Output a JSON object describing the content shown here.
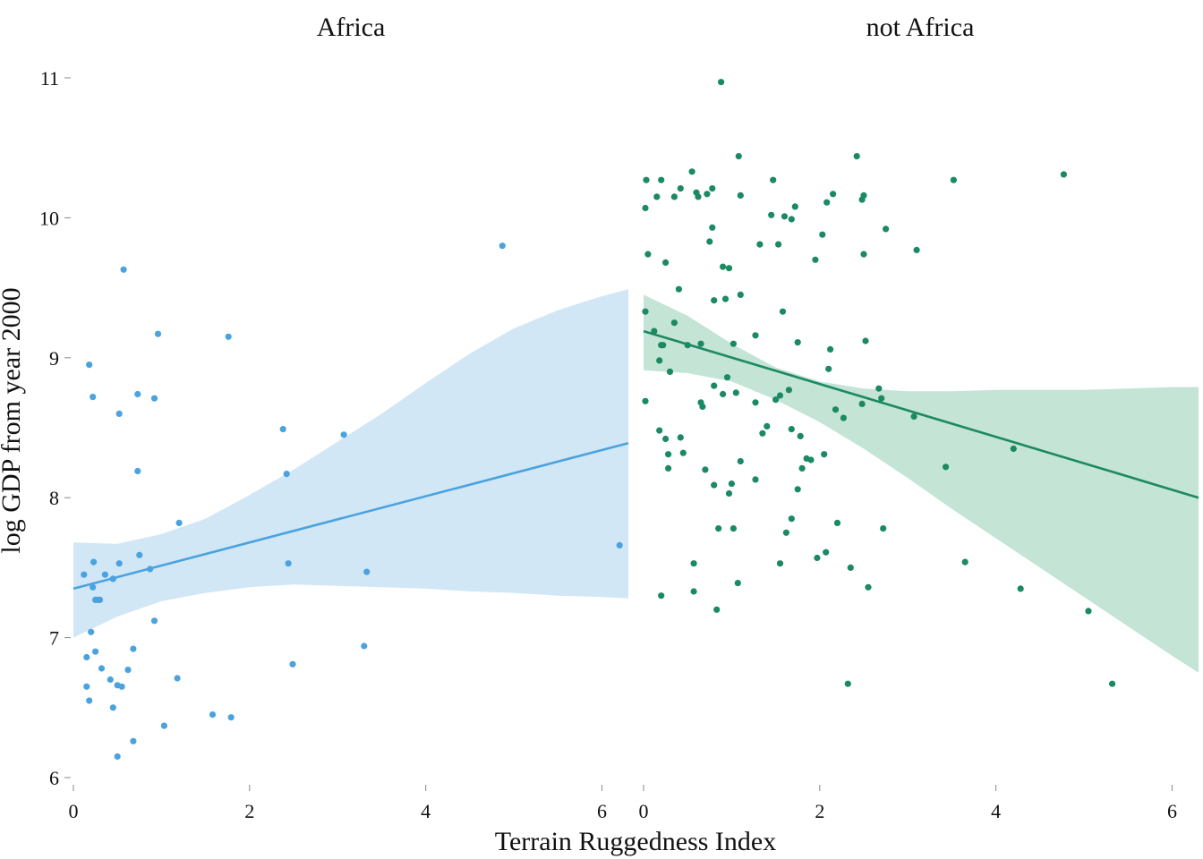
{
  "chart_data": {
    "type": "scatter",
    "xlabel": "Terrain Ruggedness Index",
    "ylabel": "log GDP from year 2000",
    "ylim": [
      6,
      11
    ],
    "y_ticks": [
      6,
      7,
      8,
      9,
      10,
      11
    ],
    "grid": false,
    "legend": "none",
    "panels": [
      {
        "title": "Africa",
        "color": "#4aa3df",
        "band_color": "#d2e7f6",
        "xlim": [
          0,
          6.3
        ],
        "x_ticks": [
          0,
          2,
          4,
          6
        ],
        "points": [
          [
            0.12,
            7.45
          ],
          [
            0.15,
            6.86
          ],
          [
            0.15,
            6.65
          ],
          [
            0.18,
            8.95
          ],
          [
            0.18,
            6.55
          ],
          [
            0.2,
            7.04
          ],
          [
            0.22,
            8.72
          ],
          [
            0.22,
            7.36
          ],
          [
            0.23,
            7.54
          ],
          [
            0.25,
            7.27
          ],
          [
            0.25,
            6.9
          ],
          [
            0.28,
            7.27
          ],
          [
            0.3,
            7.27
          ],
          [
            0.32,
            6.78
          ],
          [
            0.36,
            7.45
          ],
          [
            0.42,
            6.7
          ],
          [
            0.45,
            7.42
          ],
          [
            0.45,
            6.5
          ],
          [
            0.5,
            6.66
          ],
          [
            0.5,
            6.15
          ],
          [
            0.52,
            8.6
          ],
          [
            0.52,
            7.53
          ],
          [
            0.55,
            6.65
          ],
          [
            0.57,
            9.63
          ],
          [
            0.62,
            6.77
          ],
          [
            0.68,
            6.92
          ],
          [
            0.68,
            6.26
          ],
          [
            0.73,
            8.74
          ],
          [
            0.73,
            8.19
          ],
          [
            0.75,
            7.59
          ],
          [
            0.87,
            7.49
          ],
          [
            0.92,
            8.71
          ],
          [
            0.92,
            7.12
          ],
          [
            0.96,
            9.17
          ],
          [
            1.03,
            6.37
          ],
          [
            1.18,
            6.71
          ],
          [
            1.2,
            7.82
          ],
          [
            1.58,
            6.45
          ],
          [
            1.76,
            9.15
          ],
          [
            1.79,
            6.43
          ],
          [
            2.38,
            8.49
          ],
          [
            2.42,
            8.17
          ],
          [
            2.44,
            7.53
          ],
          [
            2.49,
            6.81
          ],
          [
            3.07,
            8.45
          ],
          [
            3.3,
            6.94
          ],
          [
            3.33,
            7.47
          ],
          [
            4.87,
            9.8
          ],
          [
            6.2,
            7.66
          ]
        ],
        "trend": {
          "x": [
            0,
            6.3
          ],
          "y": [
            7.35,
            8.39
          ]
        },
        "band": {
          "x": [
            0,
            0.5,
            1,
            1.5,
            2,
            2.5,
            3,
            3.5,
            4,
            4.5,
            5,
            5.5,
            6,
            6.3
          ],
          "lower": [
            7.0,
            7.15,
            7.26,
            7.32,
            7.36,
            7.38,
            7.37,
            7.36,
            7.35,
            7.33,
            7.32,
            7.3,
            7.29,
            7.28
          ],
          "upper": [
            7.68,
            7.67,
            7.74,
            7.85,
            8.02,
            8.2,
            8.4,
            8.6,
            8.82,
            9.03,
            9.21,
            9.34,
            9.44,
            9.49
          ]
        }
      },
      {
        "title": "not Africa",
        "color": "#1b8a62",
        "band_color": "#c4e4d6",
        "xlim": [
          0,
          6.3
        ],
        "x_ticks": [
          0,
          2,
          4,
          6
        ],
        "points": [
          [
            0.03,
            10.27
          ],
          [
            0.02,
            10.07
          ],
          [
            0.05,
            9.74
          ],
          [
            0.02,
            9.33
          ],
          [
            0.02,
            8.69
          ],
          [
            0.12,
            9.19
          ],
          [
            0.15,
            10.15
          ],
          [
            0.18,
            8.98
          ],
          [
            0.18,
            8.48
          ],
          [
            0.2,
            9.09
          ],
          [
            0.2,
            10.27
          ],
          [
            0.2,
            7.3
          ],
          [
            0.22,
            9.09
          ],
          [
            0.25,
            8.42
          ],
          [
            0.25,
            9.68
          ],
          [
            0.28,
            8.31
          ],
          [
            0.28,
            8.21
          ],
          [
            0.3,
            8.9
          ],
          [
            0.35,
            9.25
          ],
          [
            0.35,
            10.15
          ],
          [
            0.4,
            9.49
          ],
          [
            0.42,
            8.43
          ],
          [
            0.42,
            10.21
          ],
          [
            0.45,
            8.32
          ],
          [
            0.5,
            9.09
          ],
          [
            0.55,
            10.33
          ],
          [
            0.57,
            7.53
          ],
          [
            0.57,
            7.33
          ],
          [
            0.6,
            10.18
          ],
          [
            0.62,
            10.15
          ],
          [
            0.65,
            9.1
          ],
          [
            0.65,
            8.68
          ],
          [
            0.67,
            8.65
          ],
          [
            0.7,
            8.2
          ],
          [
            0.72,
            10.17
          ],
          [
            0.75,
            9.83
          ],
          [
            0.78,
            10.21
          ],
          [
            0.78,
            9.93
          ],
          [
            0.8,
            9.41
          ],
          [
            0.8,
            8.8
          ],
          [
            0.8,
            8.09
          ],
          [
            0.83,
            7.2
          ],
          [
            0.85,
            7.78
          ],
          [
            0.88,
            10.97
          ],
          [
            0.9,
            9.65
          ],
          [
            0.9,
            8.74
          ],
          [
            0.93,
            9.42
          ],
          [
            0.95,
            8.86
          ],
          [
            0.97,
            9.64
          ],
          [
            0.97,
            8.03
          ],
          [
            1.0,
            8.1
          ],
          [
            1.02,
            9.1
          ],
          [
            1.02,
            7.78
          ],
          [
            1.05,
            8.75
          ],
          [
            1.07,
            7.39
          ],
          [
            1.08,
            10.44
          ],
          [
            1.1,
            10.16
          ],
          [
            1.1,
            9.45
          ],
          [
            1.1,
            8.26
          ],
          [
            1.27,
            9.16
          ],
          [
            1.27,
            8.68
          ],
          [
            1.27,
            8.13
          ],
          [
            1.32,
            9.81
          ],
          [
            1.35,
            8.46
          ],
          [
            1.4,
            8.51
          ],
          [
            1.45,
            10.02
          ],
          [
            1.47,
            10.27
          ],
          [
            1.5,
            8.7
          ],
          [
            1.53,
            9.81
          ],
          [
            1.55,
            8.73
          ],
          [
            1.55,
            7.53
          ],
          [
            1.58,
            9.33
          ],
          [
            1.6,
            10.01
          ],
          [
            1.62,
            7.75
          ],
          [
            1.65,
            8.77
          ],
          [
            1.68,
            9.99
          ],
          [
            1.68,
            8.49
          ],
          [
            1.68,
            7.85
          ],
          [
            1.72,
            10.08
          ],
          [
            1.75,
            9.11
          ],
          [
            1.75,
            8.06
          ],
          [
            1.78,
            8.44
          ],
          [
            1.8,
            8.21
          ],
          [
            1.85,
            8.28
          ],
          [
            1.9,
            8.27
          ],
          [
            1.95,
            9.7
          ],
          [
            1.97,
            7.57
          ],
          [
            2.03,
            9.88
          ],
          [
            2.05,
            8.31
          ],
          [
            2.07,
            7.61
          ],
          [
            2.08,
            10.11
          ],
          [
            2.1,
            8.92
          ],
          [
            2.12,
            9.06
          ],
          [
            2.15,
            10.17
          ],
          [
            2.18,
            8.63
          ],
          [
            2.2,
            7.82
          ],
          [
            2.27,
            8.57
          ],
          [
            2.32,
            6.67
          ],
          [
            2.35,
            7.5
          ],
          [
            2.42,
            10.44
          ],
          [
            2.48,
            10.13
          ],
          [
            2.48,
            8.67
          ],
          [
            2.5,
            10.16
          ],
          [
            2.5,
            9.74
          ],
          [
            2.52,
            9.12
          ],
          [
            2.55,
            7.36
          ],
          [
            2.67,
            8.78
          ],
          [
            2.7,
            8.71
          ],
          [
            2.72,
            7.78
          ],
          [
            2.75,
            9.92
          ],
          [
            3.07,
            8.58
          ],
          [
            3.1,
            9.77
          ],
          [
            3.43,
            8.22
          ],
          [
            3.52,
            10.27
          ],
          [
            3.65,
            7.54
          ],
          [
            4.2,
            8.35
          ],
          [
            4.28,
            7.35
          ],
          [
            4.77,
            10.31
          ],
          [
            5.05,
            7.19
          ],
          [
            5.32,
            6.67
          ]
        ],
        "trend": {
          "x": [
            0,
            6.3
          ],
          "y": [
            9.19,
            8.0
          ]
        },
        "band": {
          "x": [
            0,
            0.5,
            1,
            1.5,
            2,
            2.5,
            3,
            3.5,
            4,
            4.5,
            5,
            5.5,
            6,
            6.3
          ],
          "lower": [
            8.91,
            8.89,
            8.83,
            8.7,
            8.54,
            8.35,
            8.14,
            7.92,
            7.71,
            7.5,
            7.29,
            7.08,
            6.87,
            6.75
          ],
          "upper": [
            9.45,
            9.3,
            9.1,
            8.93,
            8.83,
            8.78,
            8.76,
            8.76,
            8.77,
            8.77,
            8.77,
            8.78,
            8.79,
            8.79
          ]
        }
      }
    ]
  }
}
